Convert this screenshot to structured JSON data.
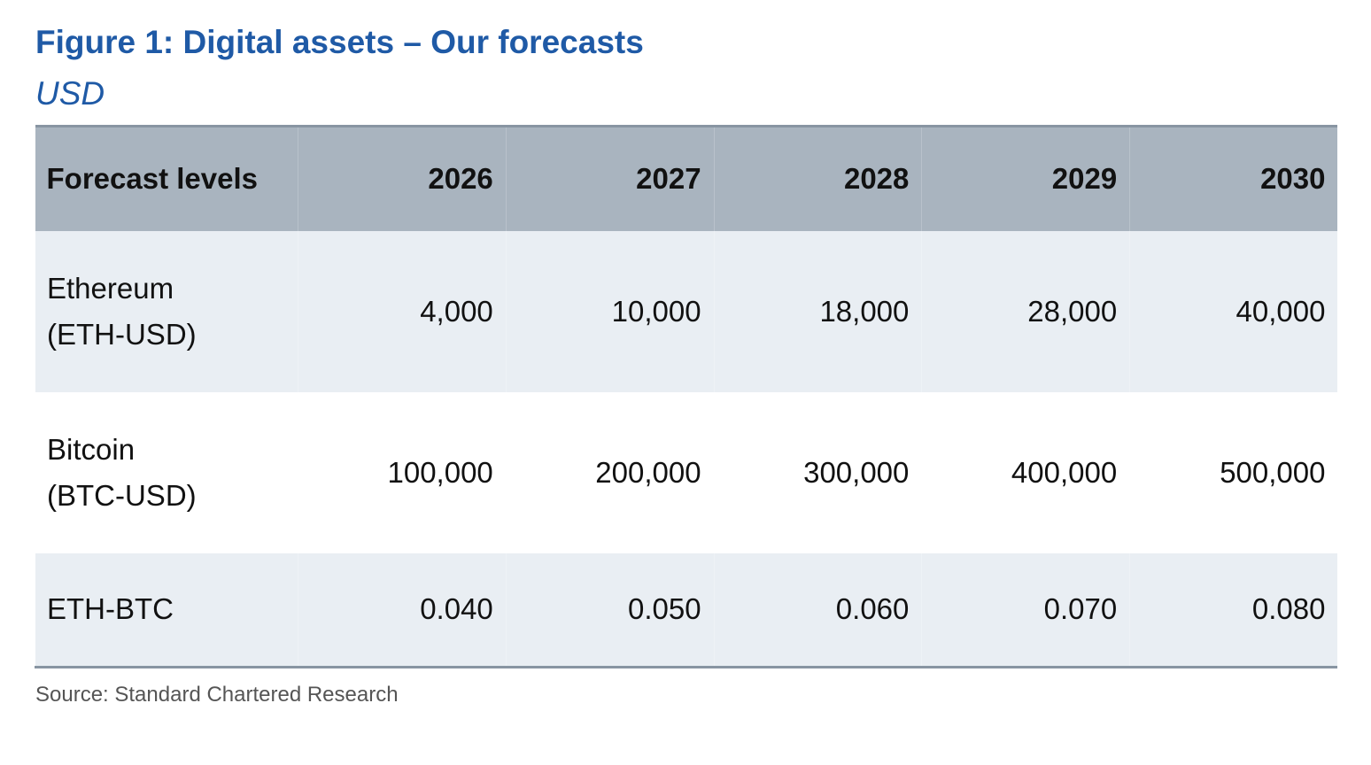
{
  "figure": {
    "title": "Figure 1: Digital assets – Our forecasts",
    "subtitle": "USD",
    "source": "Source: Standard Chartered Research"
  },
  "chart_data": {
    "type": "table",
    "title": "Figure 1: Digital assets – Our forecasts",
    "subtitle": "USD",
    "columns": [
      "Forecast levels",
      "2026",
      "2027",
      "2028",
      "2029",
      "2030"
    ],
    "rows": [
      {
        "label_lines": [
          "Ethereum",
          "(ETH-USD)"
        ],
        "values": [
          "4,000",
          "10,000",
          "18,000",
          "28,000",
          "40,000"
        ]
      },
      {
        "label_lines": [
          "Bitcoin",
          "(BTC-USD)"
        ],
        "values": [
          "100,000",
          "200,000",
          "300,000",
          "400,000",
          "500,000"
        ]
      },
      {
        "label_lines": [
          "ETH-BTC"
        ],
        "values": [
          "0.040",
          "0.050",
          "0.060",
          "0.070",
          "0.080"
        ]
      }
    ]
  },
  "colors": {
    "title": "#1f5aa6",
    "header_bg": "#a9b4bf",
    "row_shade": "#e9eef3",
    "rule": "#8895a2"
  }
}
